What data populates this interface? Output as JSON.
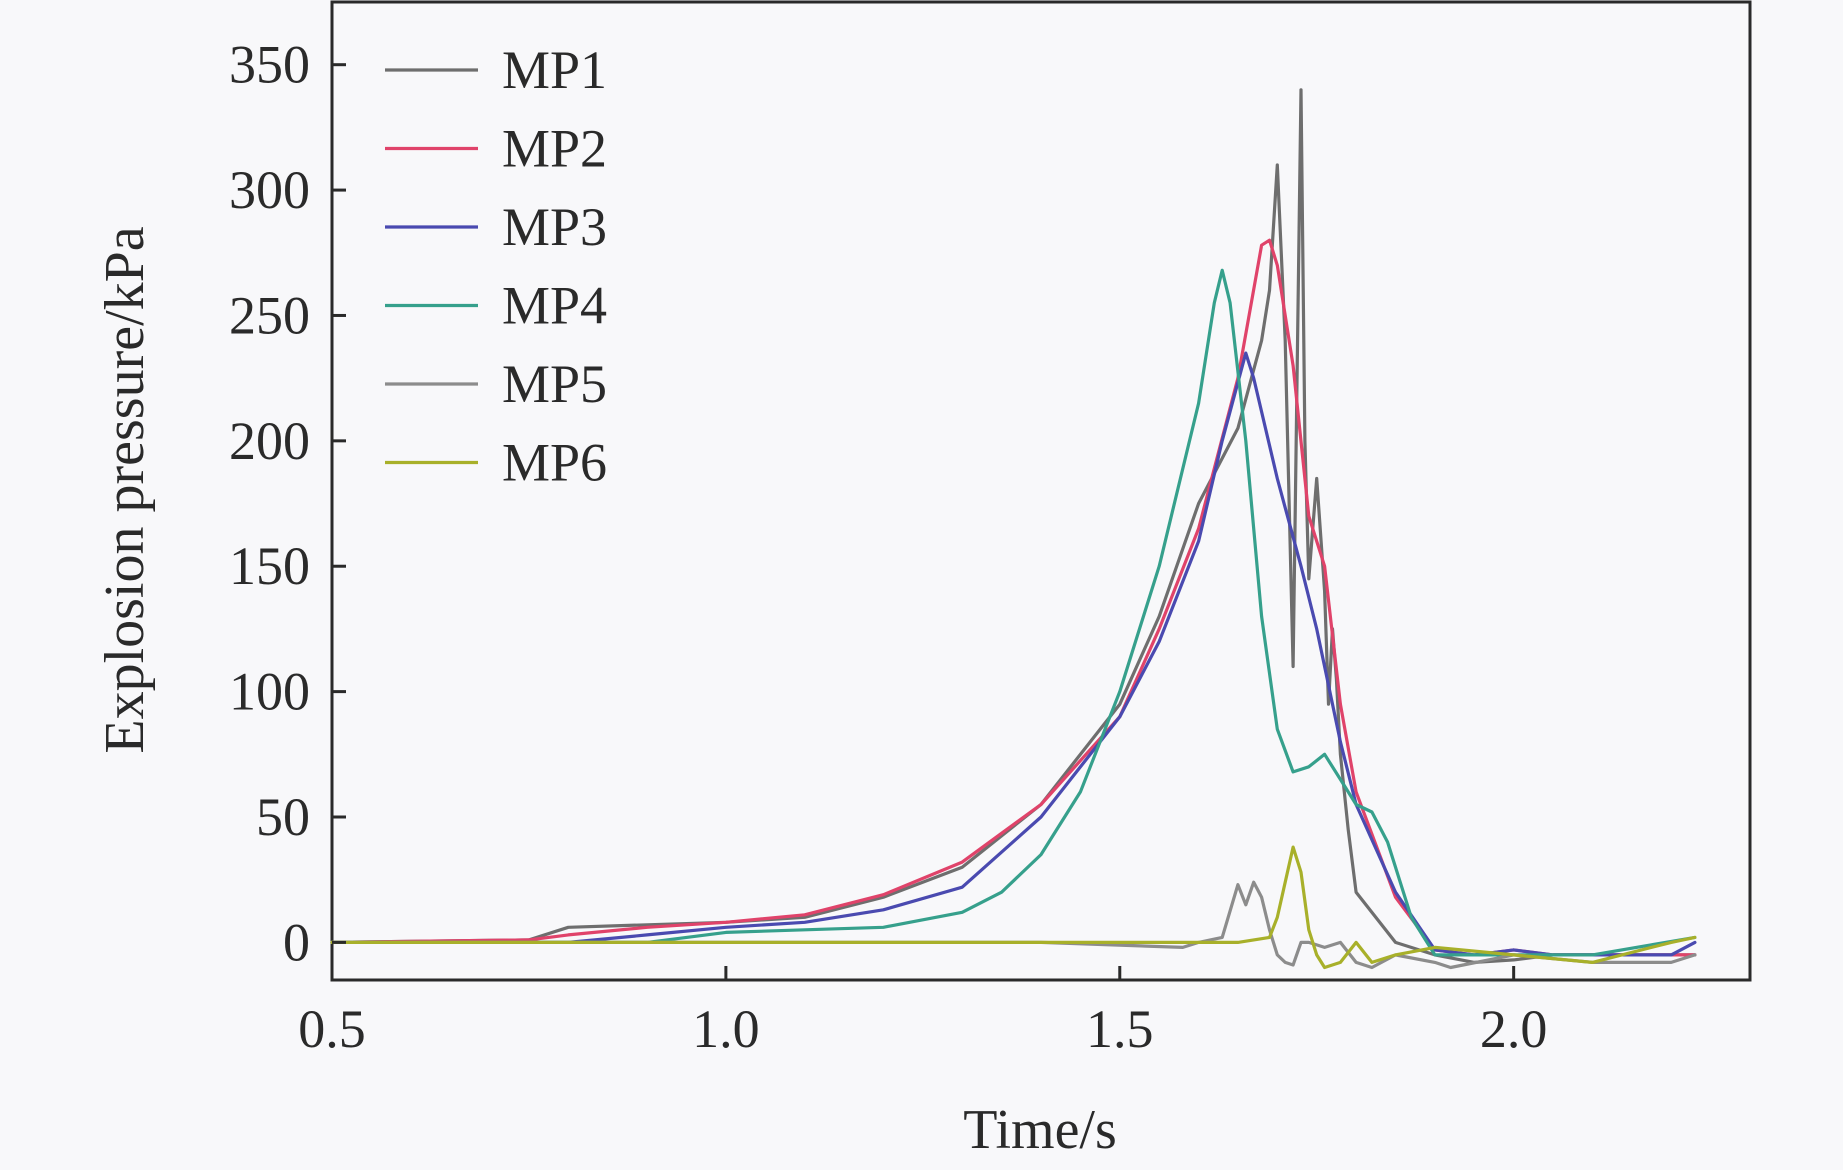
{
  "chart_data": {
    "type": "line",
    "title": "",
    "xlabel": "Time/s",
    "ylabel": "Explosion pressure/kPa",
    "xlim": [
      0.5,
      2.3
    ],
    "ylim": [
      -15,
      375
    ],
    "xticks": [
      0.5,
      1.0,
      1.5,
      2.0
    ],
    "xtick_labels": [
      "0.5",
      "1.0",
      "1.5",
      "2.0"
    ],
    "yticks": [
      0,
      50,
      100,
      150,
      200,
      250,
      300,
      350
    ],
    "ytick_labels": [
      "0",
      "50",
      "100",
      "150",
      "200",
      "250",
      "300",
      "350"
    ],
    "grid": false,
    "legend_position": "top-left",
    "series": [
      {
        "name": "MP1",
        "color": "#6e6e6e",
        "x": [
          0.5,
          0.75,
          0.8,
          0.9,
          1.0,
          1.1,
          1.2,
          1.3,
          1.4,
          1.5,
          1.55,
          1.6,
          1.65,
          1.68,
          1.69,
          1.7,
          1.71,
          1.72,
          1.73,
          1.735,
          1.74,
          1.75,
          1.76,
          1.765,
          1.77,
          1.775,
          1.78,
          1.79,
          1.8,
          1.85,
          1.9,
          1.95,
          2.0,
          2.05,
          2.1,
          2.15,
          2.2,
          2.23
        ],
        "values": [
          0,
          1,
          6,
          7,
          8,
          10,
          18,
          30,
          55,
          95,
          130,
          175,
          205,
          240,
          260,
          310,
          240,
          110,
          340,
          200,
          145,
          185,
          140,
          95,
          125,
          105,
          75,
          45,
          20,
          0,
          -5,
          -8,
          -7,
          -5,
          -5,
          -5,
          -5,
          -5
        ]
      },
      {
        "name": "MP2",
        "color": "#e0436a",
        "x": [
          0.5,
          0.75,
          0.8,
          0.9,
          1.0,
          1.1,
          1.2,
          1.3,
          1.4,
          1.5,
          1.55,
          1.6,
          1.65,
          1.68,
          1.69,
          1.7,
          1.72,
          1.74,
          1.76,
          1.78,
          1.8,
          1.85,
          1.9,
          1.95,
          2.0,
          2.05,
          2.1,
          2.15,
          2.2,
          2.23
        ],
        "values": [
          0,
          1,
          3,
          6,
          8,
          11,
          19,
          32,
          55,
          90,
          125,
          165,
          225,
          278,
          280,
          270,
          230,
          170,
          150,
          95,
          60,
          18,
          -3,
          -5,
          -3,
          -5,
          -5,
          -5,
          -5,
          -5
        ]
      },
      {
        "name": "MP3",
        "color": "#4a4ab0",
        "x": [
          0.5,
          0.8,
          0.9,
          1.0,
          1.1,
          1.2,
          1.3,
          1.4,
          1.5,
          1.55,
          1.6,
          1.63,
          1.66,
          1.67,
          1.7,
          1.73,
          1.75,
          1.78,
          1.8,
          1.85,
          1.9,
          1.95,
          2.0,
          2.05,
          2.1,
          2.15,
          2.2,
          2.23
        ],
        "values": [
          0,
          0,
          3,
          6,
          8,
          13,
          22,
          50,
          90,
          120,
          160,
          200,
          235,
          225,
          185,
          150,
          125,
          80,
          55,
          20,
          -3,
          -5,
          -3,
          -5,
          -5,
          -5,
          -5,
          0
        ]
      },
      {
        "name": "MP4",
        "color": "#36a08c",
        "x": [
          0.5,
          0.9,
          1.0,
          1.1,
          1.2,
          1.3,
          1.35,
          1.4,
          1.45,
          1.5,
          1.55,
          1.6,
          1.62,
          1.63,
          1.64,
          1.66,
          1.68,
          1.7,
          1.72,
          1.74,
          1.76,
          1.78,
          1.8,
          1.82,
          1.84,
          1.87,
          1.9,
          1.95,
          2.0,
          2.1,
          2.23
        ],
        "values": [
          0,
          0,
          4,
          5,
          6,
          12,
          20,
          35,
          60,
          100,
          150,
          215,
          255,
          268,
          255,
          200,
          130,
          85,
          68,
          70,
          75,
          65,
          55,
          52,
          40,
          10,
          -5,
          -5,
          -5,
          -5,
          2
        ]
      },
      {
        "name": "MP5",
        "color": "#8c8c8c",
        "x": [
          0.5,
          1.0,
          1.2,
          1.4,
          1.58,
          1.6,
          1.63,
          1.65,
          1.66,
          1.67,
          1.68,
          1.69,
          1.7,
          1.71,
          1.72,
          1.73,
          1.74,
          1.76,
          1.78,
          1.8,
          1.82,
          1.85,
          1.9,
          1.92,
          2.0,
          2.1,
          2.2,
          2.23
        ],
        "values": [
          0,
          0,
          0,
          0,
          -2,
          0,
          2,
          23,
          15,
          24,
          18,
          5,
          -5,
          -8,
          -9,
          0,
          0,
          -2,
          0,
          -8,
          -10,
          -5,
          -8,
          -10,
          -5,
          -8,
          -8,
          -5
        ]
      },
      {
        "name": "MP6",
        "color": "#a8b02a",
        "x": [
          0.5,
          1.0,
          1.5,
          1.65,
          1.69,
          1.7,
          1.72,
          1.73,
          1.74,
          1.75,
          1.76,
          1.78,
          1.8,
          1.82,
          1.85,
          1.9,
          2.0,
          2.1,
          2.2,
          2.23
        ],
        "values": [
          0,
          0,
          0,
          0,
          2,
          10,
          38,
          28,
          5,
          -5,
          -10,
          -8,
          0,
          -8,
          -5,
          -2,
          -5,
          -8,
          0,
          2
        ]
      }
    ]
  }
}
